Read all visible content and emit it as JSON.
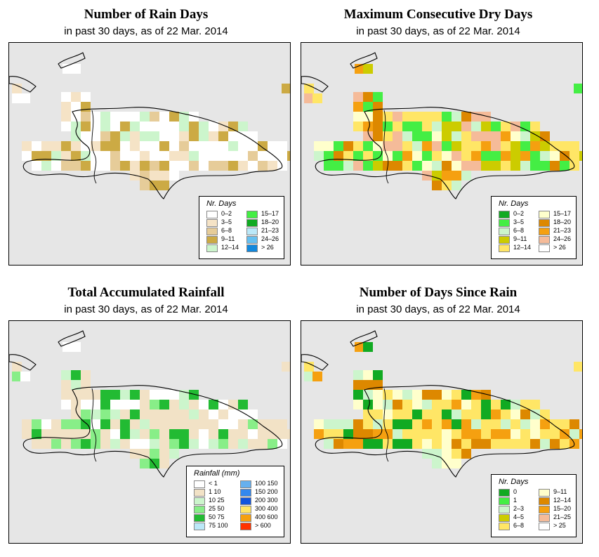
{
  "panels": [
    {
      "id": "rain-days",
      "title": "Number of Rain Days",
      "subtitle": "in past 30 days, as of  22 Mar. 2014",
      "legend": {
        "title": "Nr. Days",
        "items": [
          {
            "label": "0–2",
            "color": "#ffffff"
          },
          {
            "label": "3–5",
            "color": "#f5e3c6"
          },
          {
            "label": "6–8",
            "color": "#e6cc99"
          },
          {
            "label": "9–11",
            "color": "#ccaa44"
          },
          {
            "label": "12–14",
            "color": "#ccf5cc"
          },
          {
            "label": "15–17",
            "color": "#44ee44"
          },
          {
            "label": "18–20",
            "color": "#11aa22"
          },
          {
            "label": "21–23",
            "color": "#bbe8f8"
          },
          {
            "label": "24–26",
            "color": "#66c0f0"
          },
          {
            "label": "> 26",
            "color": "#1188dd"
          }
        ]
      }
    },
    {
      "id": "max-dry-days",
      "title": "Maximum Consecutive Dry Days",
      "subtitle": "in past 30 days, as of  22 Mar. 2014",
      "legend": {
        "title": "Nr. Days",
        "items": [
          {
            "label": "0–2",
            "color": "#11aa22"
          },
          {
            "label": "3–5",
            "color": "#44ee44"
          },
          {
            "label": "6–8",
            "color": "#ccf5cc"
          },
          {
            "label": "9–11",
            "color": "#cccc00"
          },
          {
            "label": "12–14",
            "color": "#ffe666"
          },
          {
            "label": "15–17",
            "color": "#ffffcc"
          },
          {
            "label": "18–20",
            "color": "#dd8800"
          },
          {
            "label": "21–23",
            "color": "#f5a010"
          },
          {
            "label": "24–26",
            "color": "#f5bb99"
          },
          {
            "label": "> 26",
            "color": "#ffffff"
          }
        ]
      }
    },
    {
      "id": "total-rainfall",
      "title": "Total Accumulated Rainfall",
      "subtitle": "in past 30 days, as of  22 Mar. 2014",
      "legend": {
        "title": "Rainfall (mm)",
        "items": [
          {
            "label": "< 1",
            "color": "#ffffff"
          },
          {
            "label": "1    10",
            "color": "#f2e2c6"
          },
          {
            "label": "10    25",
            "color": "#ccf5cc"
          },
          {
            "label": "25    50",
            "color": "#88ee88"
          },
          {
            "label": "50    75",
            "color": "#22bb33"
          },
          {
            "label": "75   100",
            "color": "#bbe8f8"
          },
          {
            "label": "100   150",
            "color": "#66b0ee"
          },
          {
            "label": "150   200",
            "color": "#3388ee"
          },
          {
            "label": "200   300",
            "color": "#1155dd"
          },
          {
            "label": "300   400",
            "color": "#ffe666"
          },
          {
            "label": "400   600",
            "color": "#f5a010"
          },
          {
            "label": "> 600",
            "color": "#ff3300"
          }
        ]
      }
    },
    {
      "id": "days-since-rain",
      "title": "Number of Days Since Rain",
      "subtitle": "in past 30 days, as of  22 Mar. 2014",
      "legend": {
        "title": "Nr. Days",
        "items": [
          {
            "label": "0",
            "color": "#11aa22"
          },
          {
            "label": "1",
            "color": "#44ee44"
          },
          {
            "label": "2–3",
            "color": "#ccf5cc"
          },
          {
            "label": "4–5",
            "color": "#cccc00"
          },
          {
            "label": "6–8",
            "color": "#ffe666"
          },
          {
            "label": "9–11",
            "color": "#ffffcc"
          },
          {
            "label": "12–14",
            "color": "#dd8800"
          },
          {
            "label": "15–20",
            "color": "#f5a010"
          },
          {
            "label": "21–25",
            "color": "#f5bb99"
          },
          {
            "label": "> 25",
            "color": "#ffffff"
          }
        ]
      }
    }
  ]
}
